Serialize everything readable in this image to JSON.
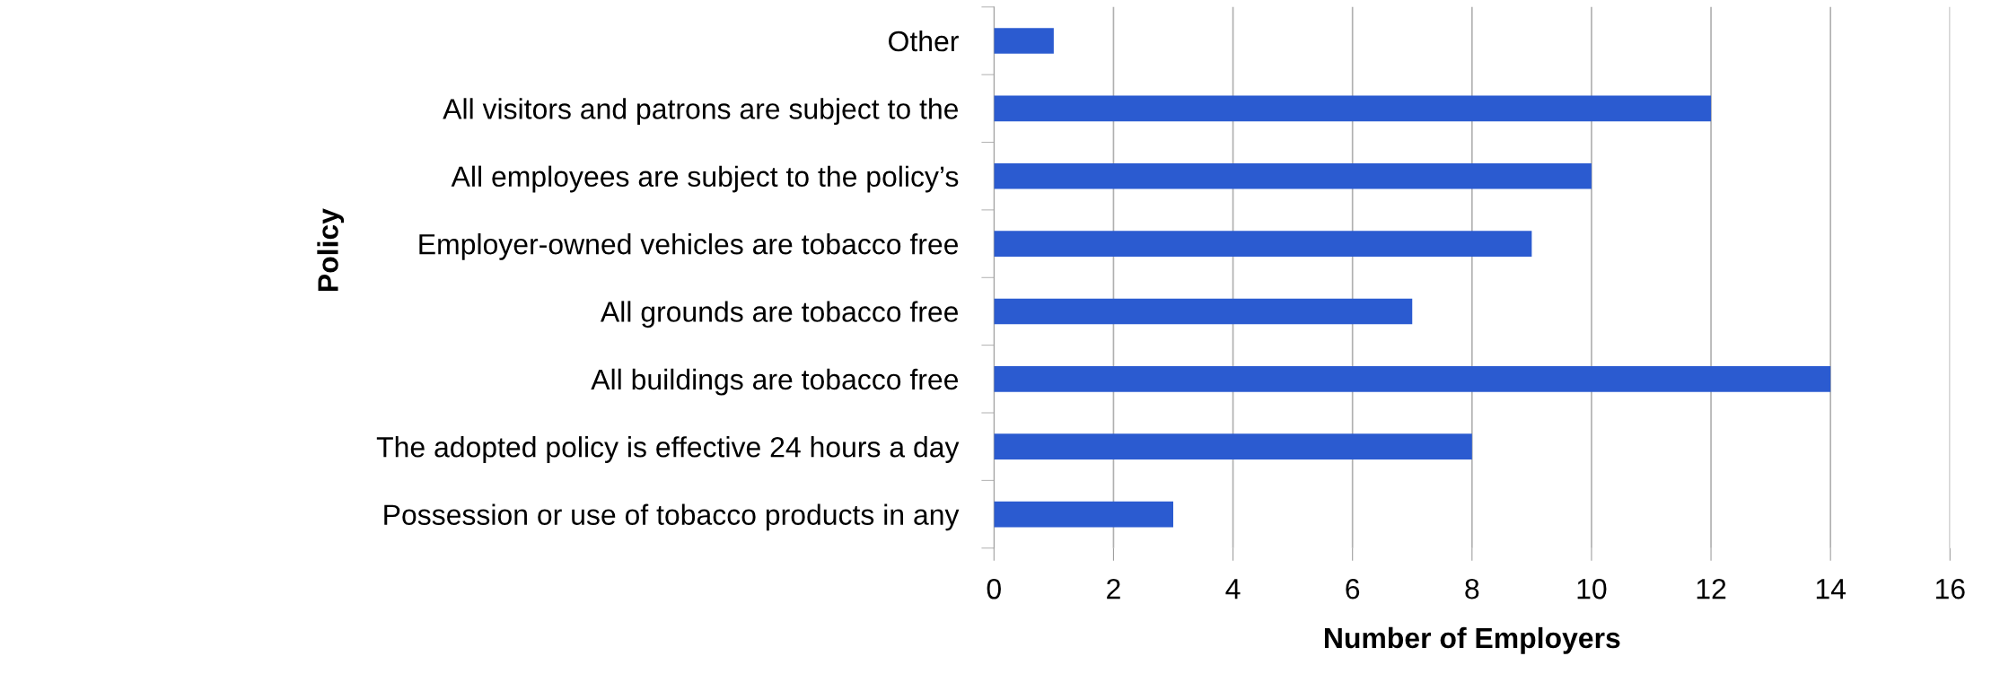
{
  "chart_data": {
    "type": "bar",
    "orientation": "horizontal",
    "xlabel": "Number of Employers",
    "ylabel": "Policy",
    "categories": [
      "Other",
      "All visitors and patrons are subject to the",
      "All employees are subject to the policy’s",
      "Employer-owned vehicles are tobacco free",
      "All grounds are tobacco free",
      "All buildings are tobacco free",
      "The adopted policy is effective 24 hours a day",
      "Possession or use of tobacco products in any"
    ],
    "values": [
      1,
      12,
      10,
      9,
      7,
      14,
      8,
      3
    ],
    "color": "#2b5bd0",
    "xlim": [
      0,
      16
    ],
    "xticks": [
      0,
      2,
      4,
      6,
      8,
      10,
      12,
      14,
      16
    ],
    "grid": "x",
    "legend": false
  }
}
